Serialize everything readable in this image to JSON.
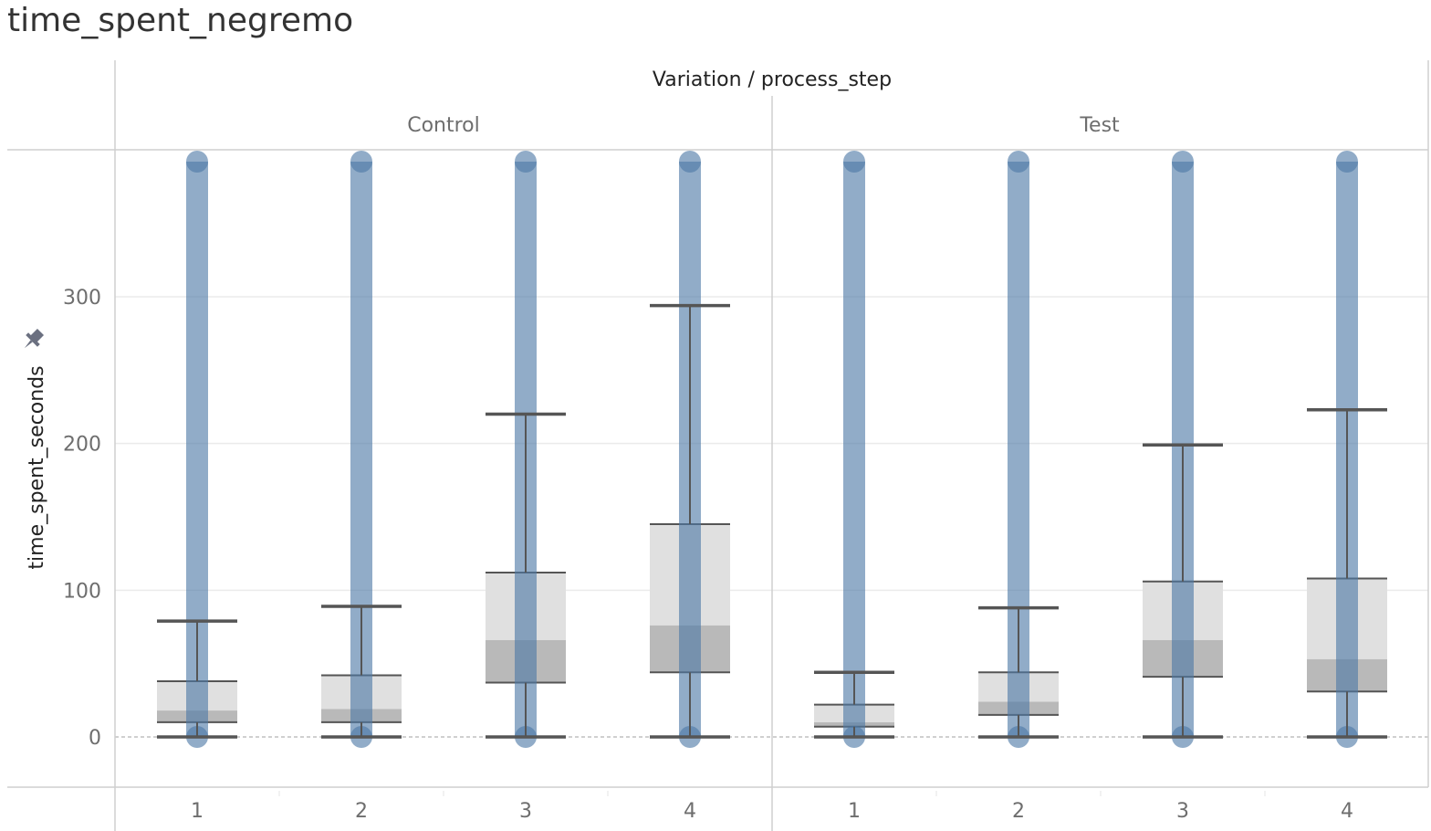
{
  "title": "time_spent_negremo",
  "chart_data": {
    "type": "box",
    "title": "time_spent_negremo",
    "column_header": "Variation / process_step",
    "ylabel": "time_spent_seconds",
    "xlabel": "",
    "ylim": [
      -34,
      400
    ],
    "yticks": [
      "0",
      "100",
      "200",
      "300"
    ],
    "ytick_values": [
      0,
      100,
      200,
      300
    ],
    "grid": true,
    "colors": {
      "points": "#4e79a7",
      "box_upper": "#e0e0e0",
      "box_lower": "#b9b9b9",
      "whisker": "#555555",
      "divider": "#cfcfcf",
      "grid": "#ebebeb"
    },
    "panes": [
      {
        "name": "Control",
        "steps": [
          {
            "label": "1",
            "min": 0,
            "q1": 10,
            "median": 18,
            "q3": 38,
            "whisker_high": 79,
            "points_top": 400
          },
          {
            "label": "2",
            "min": 0,
            "q1": 10,
            "median": 19,
            "q3": 42,
            "whisker_high": 89,
            "points_top": 400
          },
          {
            "label": "3",
            "min": 0,
            "q1": 37,
            "median": 66,
            "q3": 112,
            "whisker_high": 220,
            "points_top": 400
          },
          {
            "label": "4",
            "min": 0,
            "q1": 44,
            "median": 76,
            "q3": 145,
            "whisker_high": 294,
            "points_top": 400
          }
        ]
      },
      {
        "name": "Test",
        "steps": [
          {
            "label": "1",
            "min": 0,
            "q1": 7,
            "median": 10,
            "q3": 22,
            "whisker_high": 44,
            "points_top": 400
          },
          {
            "label": "2",
            "min": 0,
            "q1": 15,
            "median": 24,
            "q3": 44,
            "whisker_high": 88,
            "points_top": 400
          },
          {
            "label": "3",
            "min": 0,
            "q1": 41,
            "median": 66,
            "q3": 106,
            "whisker_high": 199,
            "points_top": 400
          },
          {
            "label": "4",
            "min": 0,
            "q1": 31,
            "median": 53,
            "q3": 108,
            "whisker_high": 223,
            "points_top": 400
          }
        ]
      }
    ]
  }
}
